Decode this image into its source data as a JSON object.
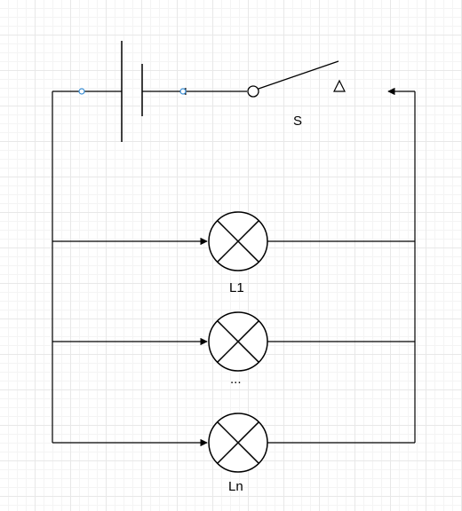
{
  "labels": {
    "switch": "S",
    "lamp_first": "L1",
    "lamp_middle": "...",
    "lamp_last": "Ln"
  },
  "colors": {
    "wire": "#000000",
    "connector_point": "#3a8fd6",
    "grid": "#e8e8e8"
  }
}
